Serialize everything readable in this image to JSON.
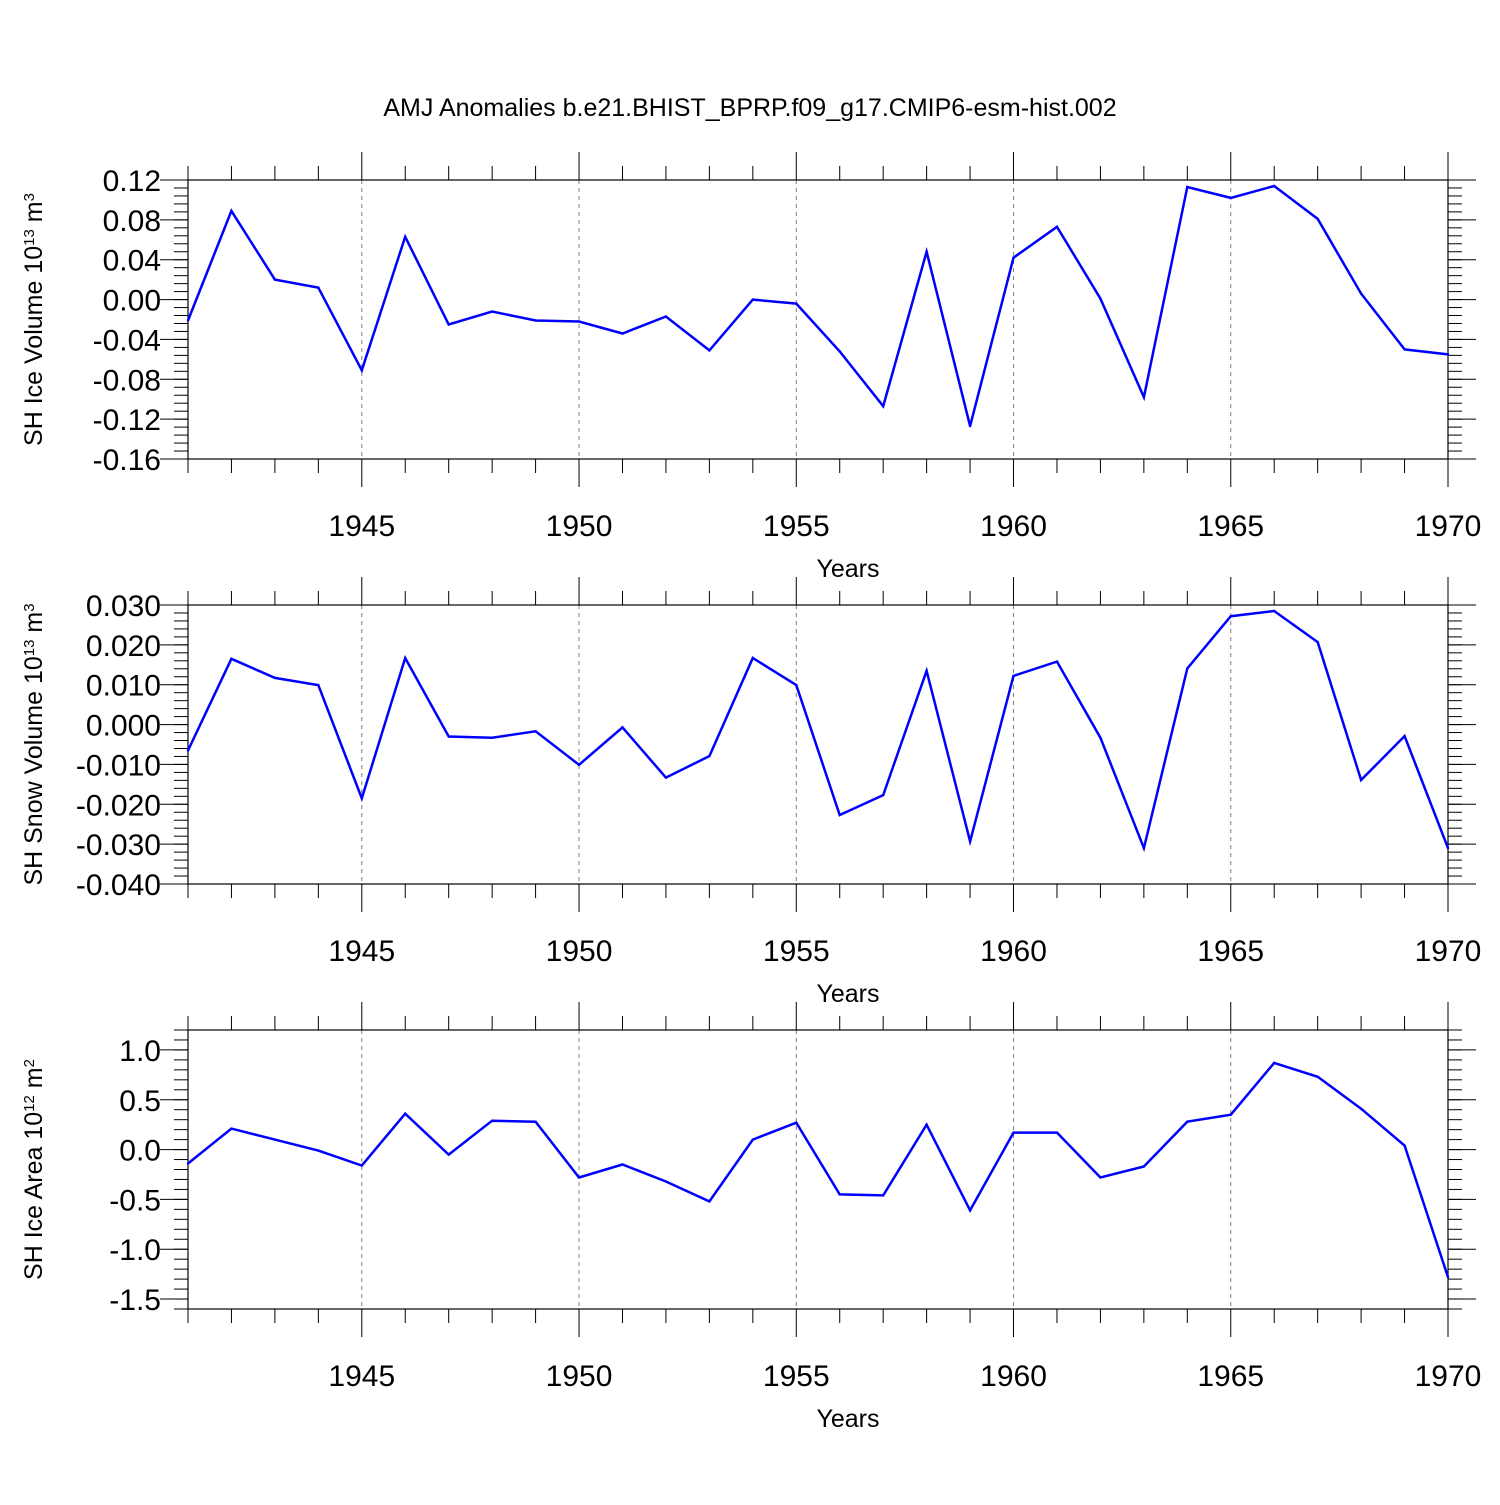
{
  "figure_title": "AMJ Anomalies b.e21.BHIST_BPRP.f09_g17.CMIP6-esm-hist.002",
  "colors": {
    "line": "#0000ff",
    "axis": "#000000",
    "grid": "#808080"
  },
  "chart_data": [
    {
      "type": "line",
      "ylabel_main": "SH Ice Volume 10",
      "ylabel_exp": "13",
      "ylabel_unit": " m",
      "ylabel_unit_exp": "3",
      "xlabel": "Years",
      "xlim": [
        1941,
        1970
      ],
      "ylim": [
        -0.16,
        0.12
      ],
      "yticks": [
        0.12,
        0.08,
        0.04,
        0.0,
        -0.04,
        -0.08,
        -0.12,
        -0.16
      ],
      "ytick_labels": [
        "0.12",
        "0.08",
        "0.04",
        "0.00",
        "-0.04",
        "-0.08",
        "-0.12",
        "-0.16"
      ],
      "yminor_step": 0.008,
      "xticks": [
        1945,
        1950,
        1955,
        1960,
        1965,
        1970
      ],
      "xtick_labels": [
        "1945",
        "1950",
        "1955",
        "1960",
        "1965",
        "1970"
      ],
      "grid": "vertical-dashed",
      "series": [
        {
          "name": "SH Ice Volume",
          "x": [
            1941,
            1942,
            1943,
            1944,
            1945,
            1946,
            1947,
            1948,
            1949,
            1950,
            1951,
            1952,
            1953,
            1954,
            1955,
            1956,
            1957,
            1958,
            1959,
            1960,
            1961,
            1962,
            1963,
            1964,
            1965,
            1966,
            1967,
            1968,
            1969,
            1970
          ],
          "values": [
            -0.021,
            0.089,
            0.02,
            0.012,
            -0.071,
            0.063,
            -0.025,
            -0.012,
            -0.021,
            -0.022,
            -0.034,
            -0.017,
            -0.051,
            0.0,
            -0.004,
            -0.052,
            -0.107,
            0.048,
            -0.127,
            0.042,
            0.073,
            0.001,
            -0.098,
            0.113,
            0.102,
            0.114,
            0.081,
            0.006,
            -0.05,
            -0.055
          ]
        }
      ]
    },
    {
      "type": "line",
      "ylabel_main": "SH Snow Volume 10",
      "ylabel_exp": "13",
      "ylabel_unit": " m",
      "ylabel_unit_exp": "3",
      "xlabel": "Years",
      "xlim": [
        1941,
        1970
      ],
      "ylim": [
        -0.04,
        0.03
      ],
      "yticks": [
        0.03,
        0.02,
        0.01,
        0.0,
        -0.01,
        -0.02,
        -0.03,
        -0.04
      ],
      "ytick_labels": [
        "0.030",
        "0.020",
        "0.010",
        "0.000",
        "-0.010",
        "-0.020",
        "-0.030",
        "-0.040"
      ],
      "yminor_step": 0.002,
      "xticks": [
        1945,
        1950,
        1955,
        1960,
        1965,
        1970
      ],
      "xtick_labels": [
        "1945",
        "1950",
        "1955",
        "1960",
        "1965",
        "1970"
      ],
      "grid": "vertical-dashed",
      "series": [
        {
          "name": "SH Snow Volume",
          "x": [
            1941,
            1942,
            1943,
            1944,
            1945,
            1946,
            1947,
            1948,
            1949,
            1950,
            1951,
            1952,
            1953,
            1954,
            1955,
            1956,
            1957,
            1958,
            1959,
            1960,
            1961,
            1962,
            1963,
            1964,
            1965,
            1966,
            1967,
            1968,
            1969,
            1970
          ],
          "values": [
            -0.0065,
            0.0165,
            0.0117,
            0.0099,
            -0.0185,
            0.0167,
            -0.003,
            -0.0033,
            -0.0017,
            -0.0101,
            -0.0007,
            -0.0133,
            -0.0079,
            0.0167,
            0.0099,
            -0.0227,
            -0.0177,
            0.0135,
            -0.0293,
            0.0122,
            0.0158,
            -0.0033,
            -0.031,
            0.0141,
            0.0272,
            0.0285,
            0.0207,
            -0.0139,
            -0.0029,
            -0.031
          ]
        }
      ]
    },
    {
      "type": "line",
      "ylabel_main": "SH Ice Area 10",
      "ylabel_exp": "12",
      "ylabel_unit": " m",
      "ylabel_unit_exp": "2",
      "xlabel": "Years",
      "xlim": [
        1941,
        1970
      ],
      "ylim": [
        -1.6,
        1.2
      ],
      "yticks": [
        1.0,
        0.5,
        0.0,
        -0.5,
        -1.0,
        -1.5
      ],
      "ytick_labels": [
        "1.0",
        "0.5",
        "0.0",
        "-0.5",
        "-1.0",
        "-1.5"
      ],
      "yminor_step": 0.1,
      "xticks": [
        1945,
        1950,
        1955,
        1960,
        1965,
        1970
      ],
      "xtick_labels": [
        "1945",
        "1950",
        "1955",
        "1960",
        "1965",
        "1970"
      ],
      "grid": "vertical-dashed",
      "series": [
        {
          "name": "SH Ice Area",
          "x": [
            1941,
            1942,
            1943,
            1944,
            1945,
            1946,
            1947,
            1948,
            1949,
            1950,
            1951,
            1952,
            1953,
            1954,
            1955,
            1956,
            1957,
            1958,
            1959,
            1960,
            1961,
            1962,
            1963,
            1964,
            1965,
            1966,
            1967,
            1968,
            1969,
            1970
          ],
          "values": [
            -0.14,
            0.21,
            0.1,
            -0.01,
            -0.16,
            0.36,
            -0.05,
            0.29,
            0.28,
            -0.28,
            -0.15,
            -0.32,
            -0.52,
            0.1,
            0.27,
            -0.45,
            -0.46,
            0.25,
            -0.61,
            0.17,
            0.17,
            -0.28,
            -0.17,
            0.28,
            0.35,
            0.87,
            0.73,
            0.41,
            0.04,
            -1.28
          ]
        }
      ]
    }
  ]
}
